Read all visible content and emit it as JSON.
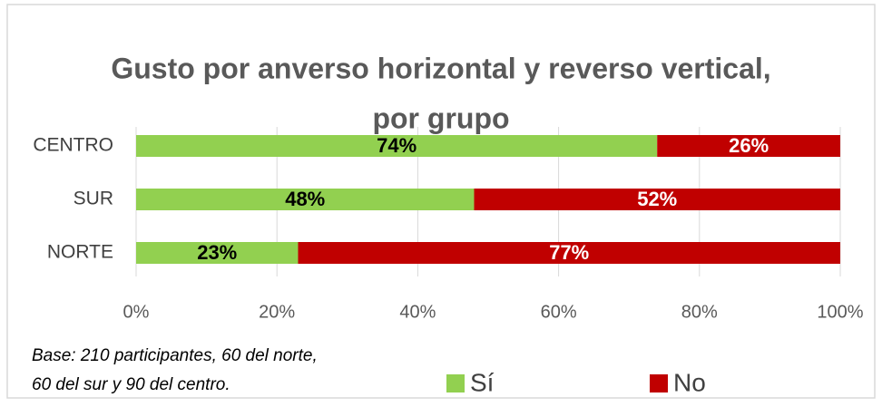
{
  "chart_data": {
    "type": "stacked_barh",
    "title": [
      "Gusto por anverso horizontal y reverso vertical,",
      "por grupo"
    ],
    "categories": [
      "CENTRO",
      "SUR",
      "NORTE"
    ],
    "series": [
      {
        "name": "Sí",
        "color": "#92d050",
        "values": [
          74,
          48,
          23
        ],
        "value_labels": [
          "74%",
          "48%",
          "23%"
        ]
      },
      {
        "name": "No",
        "color": "#c00000",
        "values": [
          26,
          52,
          77
        ],
        "value_labels": [
          "26%",
          "52%",
          "77%"
        ]
      }
    ],
    "xlim": [
      0,
      100
    ],
    "xticks": [
      {
        "value": 0,
        "label": "0%"
      },
      {
        "value": 20,
        "label": "20%"
      },
      {
        "value": 40,
        "label": "40%"
      },
      {
        "value": 60,
        "label": "60%"
      },
      {
        "value": 80,
        "label": "80%"
      },
      {
        "value": 100,
        "label": "100%"
      }
    ],
    "grid": true,
    "note": [
      "Base: 210 participantes, 60 del norte,",
      "60 del sur y 90 del centro."
    ]
  }
}
